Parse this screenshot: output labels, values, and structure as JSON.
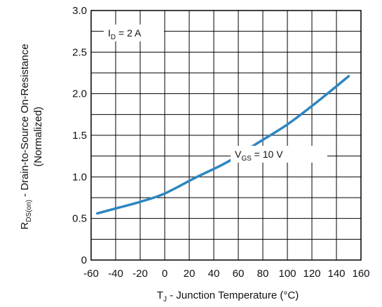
{
  "chart_data": {
    "type": "line",
    "xlabel": {
      "main": "T",
      "sub": "J",
      "rest": " - Junction Temperature (°C)"
    },
    "ylabel": {
      "main": "R",
      "sub": "DS(on)",
      "rest": " - Drain-to-Source On-Resistance",
      "line2": "(Normalized)"
    },
    "xlim": [
      -60,
      160
    ],
    "ylim": [
      0,
      3.0
    ],
    "xticks": [
      "-60",
      "-40",
      "-20",
      "0",
      "20",
      "40",
      "60",
      "80",
      "100",
      "120",
      "140",
      "160"
    ],
    "yticks": [
      "0",
      "0.5",
      "1.0",
      "1.5",
      "2.0",
      "2.5",
      "3.0"
    ],
    "grid": true,
    "series": [
      {
        "color": "#2e86c1",
        "x": [
          -55,
          -40,
          -20,
          0,
          25,
          50,
          75,
          100,
          125,
          150
        ],
        "y": [
          0.56,
          0.62,
          0.7,
          0.8,
          0.99,
          1.17,
          1.4,
          1.63,
          1.91,
          2.21
        ]
      }
    ],
    "annotations": [
      {
        "main": "I",
        "sub": "D",
        "rest": " = 2 A"
      },
      {
        "main": "V",
        "sub": "GS",
        "rest": " = 10 V"
      }
    ]
  }
}
